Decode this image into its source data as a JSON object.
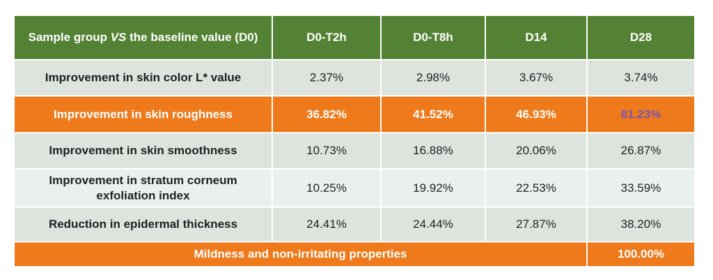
{
  "header": {
    "label_prefix": "Sample group ",
    "label_vs": "VS",
    "label_suffix": " the baseline value (D0)",
    "columns": [
      "D0-T2h",
      "D0-T8h",
      "D14",
      "D28"
    ]
  },
  "rows": [
    {
      "label": "Improvement in skin color L* value",
      "values": [
        "2.37%",
        "2.98%",
        "3.67%",
        "3.74%"
      ]
    },
    {
      "label": "Improvement in skin roughness",
      "values": [
        "36.82%",
        "41.52%",
        "46.93%",
        "81.23%"
      ]
    },
    {
      "label": "Improvement in skin smoothness",
      "values": [
        "10.73%",
        "16.88%",
        "20.06%",
        "26.87%"
      ]
    },
    {
      "label_line1": "Improvement in stratum corneum",
      "label_line2": "exfoliation index",
      "values": [
        "10.25%",
        "19.92%",
        "22.53%",
        "33.59%"
      ]
    },
    {
      "label": "Reduction in epidermal thickness",
      "values": [
        "24.41%",
        "24.44%",
        "27.87%",
        "38.20%"
      ]
    }
  ],
  "footer": {
    "label": "Mildness and non-irritating properties",
    "value": "100.00%"
  },
  "colors": {
    "header_green": "#548235",
    "highlight_orange": "#ee7a1b",
    "row_grey": "#dde4de",
    "row_light": "#eaf1ec",
    "accent_purple": "#7a57b0"
  }
}
